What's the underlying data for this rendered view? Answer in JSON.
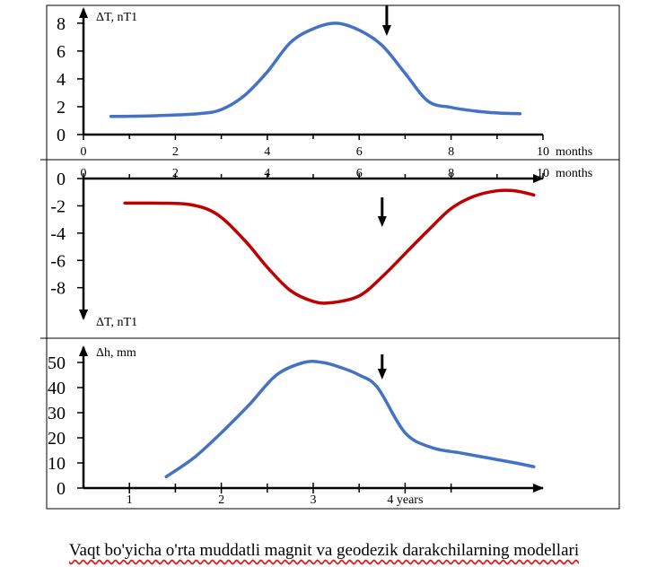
{
  "caption": "Vaqt bo'yicha o'rta muddatli magnit va geodezik darakchilarning modellari",
  "colors": {
    "blue": "#4472c4",
    "red": "#c00000",
    "axis": "#000000"
  },
  "chart_data": [
    {
      "type": "line",
      "ylabel": "ΔT, nT1",
      "xlabel": "months",
      "x_ticks": [
        0,
        2,
        4,
        6,
        8,
        10
      ],
      "x_tick_labels": [
        "0",
        "2",
        "4",
        "6",
        "8",
        "10"
      ],
      "y_ticks": [
        0,
        2,
        4,
        6,
        8
      ],
      "y_tick_labels": [
        "0",
        "2",
        "4",
        "6",
        "8"
      ],
      "xlim": [
        0,
        10
      ],
      "ylim": [
        0,
        8.7
      ],
      "series": [
        {
          "color": "#4472c4",
          "x": [
            0.6,
            1.5,
            2.5,
            3.0,
            3.5,
            4.0,
            4.5,
            5.0,
            5.5,
            6.0,
            6.5,
            7.0,
            7.5,
            8.0,
            8.5,
            9.0,
            9.5
          ],
          "y": [
            1.3,
            1.35,
            1.5,
            1.8,
            2.8,
            4.5,
            6.6,
            7.6,
            8.0,
            7.5,
            6.4,
            4.4,
            2.4,
            1.95,
            1.7,
            1.55,
            1.5
          ]
        }
      ],
      "arrow_x": 6.6
    },
    {
      "type": "line",
      "ylabel": "ΔT, nT1",
      "xlabel": "months",
      "x_ticks": [
        0,
        2,
        4,
        6,
        8,
        10
      ],
      "x_tick_labels": [
        "0",
        "2",
        "4",
        "6",
        "8",
        "10"
      ],
      "y_ticks": [
        0,
        -2,
        -4,
        -6,
        -8
      ],
      "y_tick_labels": [
        "0",
        "-2",
        "-4",
        "-6",
        "-8"
      ],
      "xlim": [
        0,
        10
      ],
      "ylim": [
        -9.6,
        0.2
      ],
      "series": [
        {
          "color": "#c00000",
          "x": [
            0.9,
            1.5,
            2.3,
            2.9,
            3.5,
            4.0,
            4.5,
            5.0,
            5.4,
            6.0,
            6.5,
            7.0,
            7.5,
            8.0,
            8.5,
            9.0,
            9.4,
            9.8
          ],
          "y": [
            -1.8,
            -1.8,
            -1.9,
            -2.6,
            -4.5,
            -6.5,
            -8.2,
            -9.0,
            -9.1,
            -8.6,
            -7.2,
            -5.5,
            -3.8,
            -2.2,
            -1.3,
            -0.9,
            -0.9,
            -1.2
          ]
        }
      ],
      "arrow_x": 6.5
    },
    {
      "type": "line",
      "ylabel": "Δh, mm",
      "xlabel": "years",
      "x_ticks": [
        0.5,
        1.5,
        2.5,
        3.5
      ],
      "x_tick_labels": [
        "1",
        "2",
        "3",
        "4 years"
      ],
      "y_ticks": [
        0,
        10,
        20,
        30,
        40,
        50
      ],
      "y_tick_labels": [
        "0",
        "10",
        "20",
        "30",
        "40",
        "50"
      ],
      "xlim": [
        0,
        5
      ],
      "ylim": [
        0,
        55
      ],
      "series": [
        {
          "color": "#4472c4",
          "x": [
            0.9,
            1.2,
            1.5,
            1.8,
            2.1,
            2.4,
            2.6,
            2.8,
            3.0,
            3.2,
            3.5,
            3.8,
            4.1,
            4.4,
            4.7,
            4.9
          ],
          "y": [
            4.5,
            12,
            22,
            33,
            45,
            50,
            50,
            48,
            45,
            40,
            22,
            16,
            14,
            12,
            10,
            8.5
          ]
        }
      ],
      "arrow_x": 3.25
    }
  ]
}
